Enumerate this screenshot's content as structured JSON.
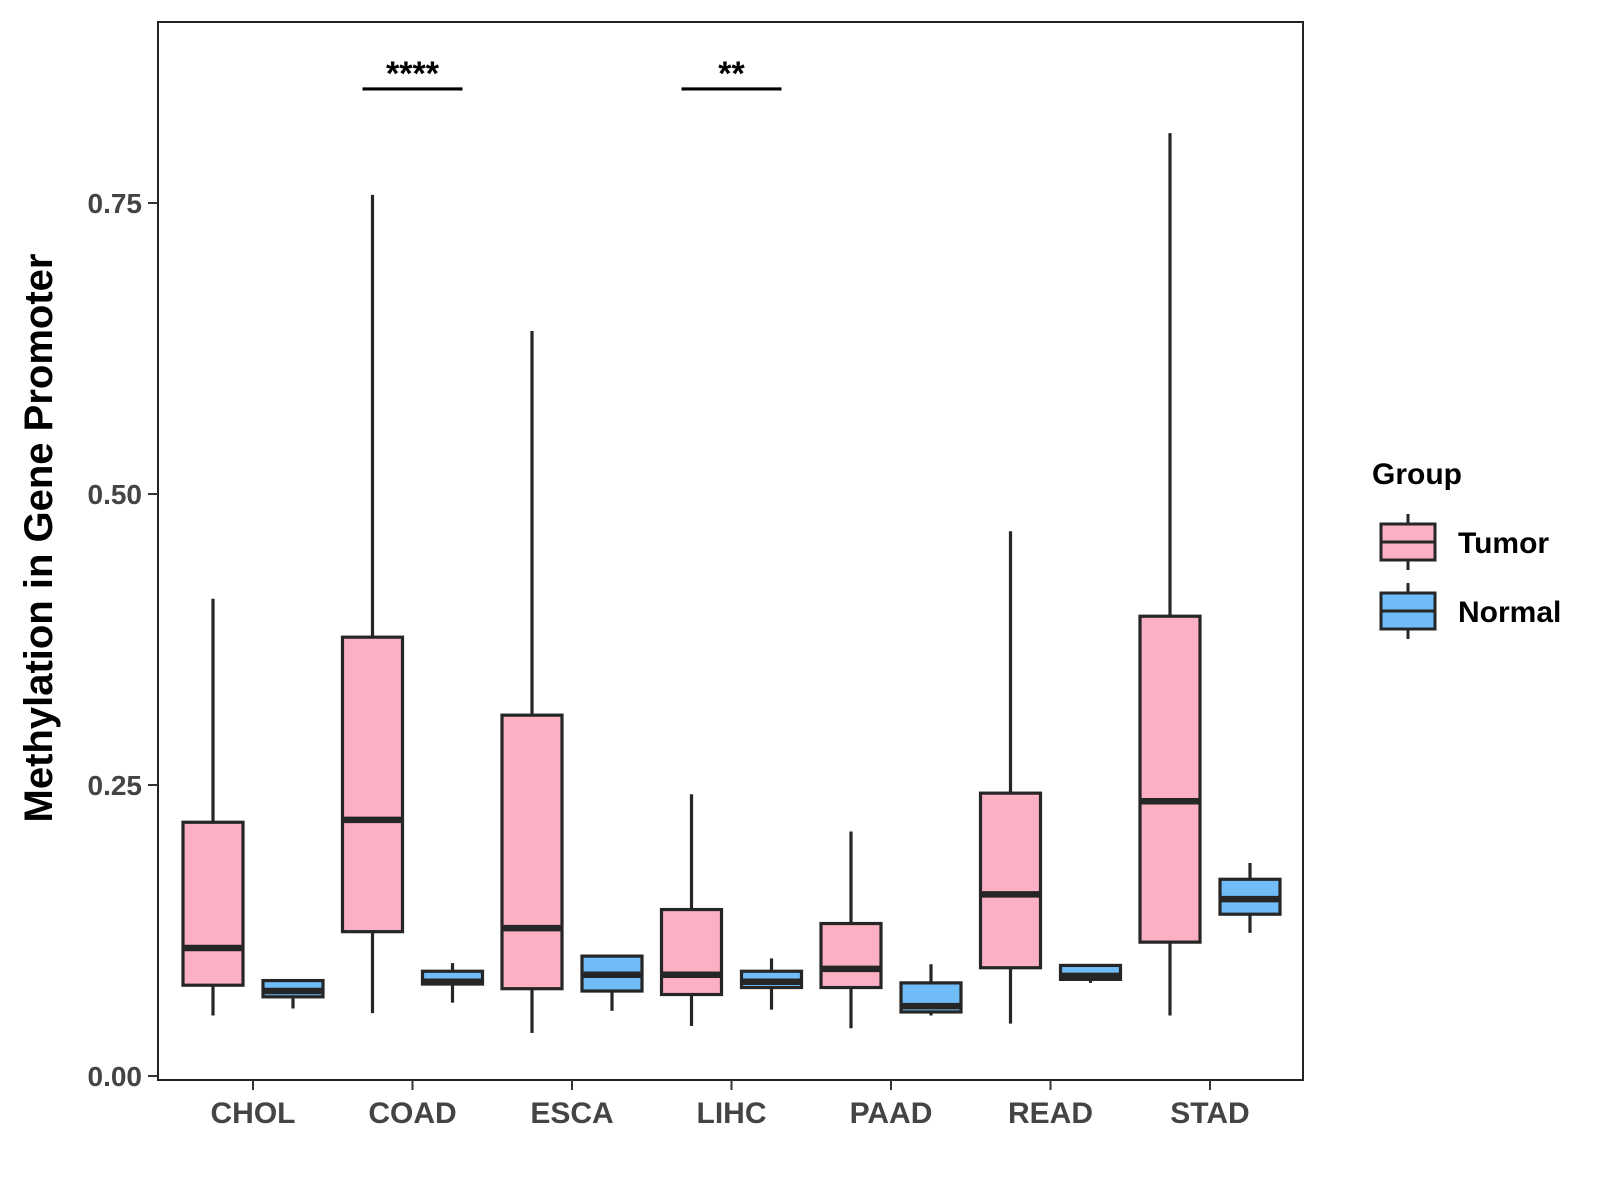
{
  "chart_data": {
    "type": "boxplot",
    "ylabel": "Methylation in Gene Promoter",
    "xlabel": "",
    "ylim": [
      0,
      0.9
    ],
    "yticks": [
      {
        "value": 0.0,
        "label": "0.00"
      },
      {
        "value": 0.25,
        "label": "0.25"
      },
      {
        "value": 0.5,
        "label": "0.50"
      },
      {
        "value": 0.75,
        "label": "0.75"
      }
    ],
    "categories": [
      "CHOL",
      "COAD",
      "ESCA",
      "LIHC",
      "PAAD",
      "READ",
      "STAD"
    ],
    "legend": {
      "title": "Group",
      "position": "right",
      "entries": [
        {
          "name": "Tumor",
          "color": "#fbb1c3"
        },
        {
          "name": "Normal",
          "color": "#6fbcf6"
        }
      ]
    },
    "series": [
      {
        "name": "Tumor",
        "color": "#fbb1c3",
        "boxes": [
          {
            "category": "CHOL",
            "min": 0.052,
            "q1": 0.078,
            "median": 0.11,
            "q3": 0.218,
            "max": 0.41
          },
          {
            "category": "COAD",
            "min": 0.054,
            "q1": 0.124,
            "median": 0.22,
            "q3": 0.377,
            "max": 0.757
          },
          {
            "category": "ESCA",
            "min": 0.037,
            "q1": 0.075,
            "median": 0.127,
            "q3": 0.31,
            "max": 0.64
          },
          {
            "category": "LIHC",
            "min": 0.043,
            "q1": 0.07,
            "median": 0.087,
            "q3": 0.143,
            "max": 0.242
          },
          {
            "category": "PAAD",
            "min": 0.041,
            "q1": 0.076,
            "median": 0.092,
            "q3": 0.131,
            "max": 0.21
          },
          {
            "category": "READ",
            "min": 0.045,
            "q1": 0.093,
            "median": 0.156,
            "q3": 0.243,
            "max": 0.468
          },
          {
            "category": "STAD",
            "min": 0.052,
            "q1": 0.115,
            "median": 0.236,
            "q3": 0.395,
            "max": 0.81
          }
        ]
      },
      {
        "name": "Normal",
        "color": "#6fbcf6",
        "boxes": [
          {
            "category": "CHOL",
            "min": 0.058,
            "q1": 0.068,
            "median": 0.073,
            "q3": 0.082,
            "max": 0.082
          },
          {
            "category": "COAD",
            "min": 0.063,
            "q1": 0.079,
            "median": 0.081,
            "q3": 0.09,
            "max": 0.097
          },
          {
            "category": "ESCA",
            "min": 0.056,
            "q1": 0.073,
            "median": 0.087,
            "q3": 0.103,
            "max": 0.103
          },
          {
            "category": "LIHC",
            "min": 0.057,
            "q1": 0.076,
            "median": 0.081,
            "q3": 0.09,
            "max": 0.101
          },
          {
            "category": "PAAD",
            "min": 0.052,
            "q1": 0.055,
            "median": 0.06,
            "q3": 0.08,
            "max": 0.096
          },
          {
            "category": "READ",
            "min": 0.08,
            "q1": 0.083,
            "median": 0.086,
            "q3": 0.095,
            "max": 0.096
          },
          {
            "category": "STAD",
            "min": 0.123,
            "q1": 0.139,
            "median": 0.152,
            "q3": 0.169,
            "max": 0.183
          }
        ]
      }
    ],
    "significance": [
      {
        "category": "COAD",
        "label": "****",
        "y": 0.848
      },
      {
        "category": "LIHC",
        "label": "**",
        "y": 0.848
      }
    ]
  }
}
